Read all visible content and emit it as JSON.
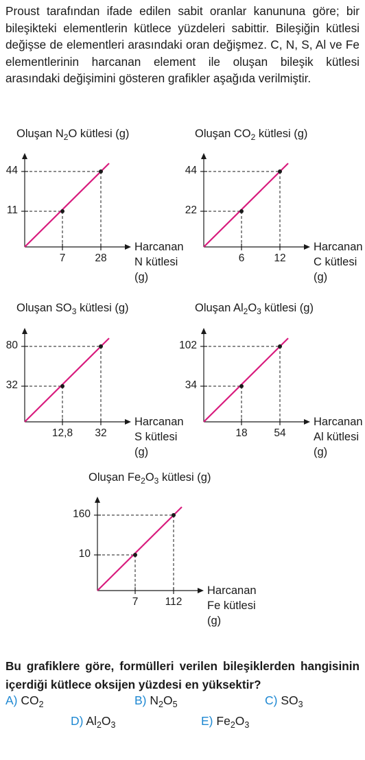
{
  "intro_text": "Proust tarafından ifade edilen sabit oranlar kanununa göre; bir bileşikteki elementlerin kütlece yüzdeleri sabittir. Bileşiğin kütlesi değişse de elementleri arasındaki oran değişmez. C, N, S, Al ve Fe elementlerinin harcanan element ile oluşan bileşik kütlesi arasındaki değişimini gösteren grafikler aşağıda verilmiştir.",
  "colors": {
    "line": "#d81b7d",
    "axis": "#1a1a1a",
    "option_letter": "#1e88d2"
  },
  "chart_data": [
    {
      "type": "line",
      "title_prefix": "Oluşan ",
      "formula": [
        [
          "N",
          "2"
        ],
        [
          "O",
          ""
        ]
      ],
      "title_suffix": " kütlesi (g)",
      "xlabel": [
        "Harcanan",
        "N kütlesi",
        "(g)"
      ],
      "x_ticks": [
        "7",
        "28"
      ],
      "y_ticks": [
        "11",
        "44"
      ],
      "points": [
        {
          "x": 7,
          "y": 11
        },
        {
          "x": 28,
          "y": 44
        }
      ]
    },
    {
      "type": "line",
      "title_prefix": "Oluşan ",
      "formula": [
        [
          "CO",
          "2"
        ]
      ],
      "title_suffix": " kütlesi (g)",
      "xlabel": [
        "Harcanan",
        "C kütlesi",
        "(g)"
      ],
      "x_ticks": [
        "6",
        "12"
      ],
      "y_ticks": [
        "22",
        "44"
      ],
      "points": [
        {
          "x": 6,
          "y": 22
        },
        {
          "x": 12,
          "y": 44
        }
      ]
    },
    {
      "type": "line",
      "title_prefix": "Oluşan ",
      "formula": [
        [
          "SO",
          "3"
        ]
      ],
      "title_suffix": " kütlesi (g)",
      "xlabel": [
        "Harcanan",
        "S kütlesi",
        "(g)"
      ],
      "x_ticks": [
        "12,8",
        "32"
      ],
      "y_ticks": [
        "32",
        "80"
      ],
      "points": [
        {
          "x": 12.8,
          "y": 32
        },
        {
          "x": 32,
          "y": 80
        }
      ]
    },
    {
      "type": "line",
      "title_prefix": "Oluşan ",
      "formula": [
        [
          "Al",
          "2"
        ],
        [
          "O",
          "3"
        ]
      ],
      "title_suffix": " kütlesi (g)",
      "xlabel": [
        "Harcanan",
        "Al kütlesi",
        "(g)"
      ],
      "x_ticks": [
        "18",
        "54"
      ],
      "y_ticks": [
        "34",
        "102"
      ],
      "points": [
        {
          "x": 18,
          "y": 34
        },
        {
          "x": 54,
          "y": 102
        }
      ]
    },
    {
      "type": "line",
      "title_prefix": "Oluşan ",
      "formula": [
        [
          "Fe",
          "2"
        ],
        [
          "O",
          "3"
        ]
      ],
      "title_suffix": " kütlesi (g)",
      "xlabel": [
        "Harcanan",
        "Fe kütlesi",
        "(g)"
      ],
      "x_ticks": [
        "7",
        "112"
      ],
      "y_ticks": [
        "10",
        "160"
      ],
      "points": [
        {
          "x": 7,
          "y": 10
        },
        {
          "x": 112,
          "y": 160
        }
      ]
    }
  ],
  "question": "Bu grafiklere göre, formülleri verilen bileşiklerden hangisinin içerdiği kütlece oksijen yüzdesi en yüksektir?",
  "options": [
    {
      "letter": "A)",
      "formula": [
        [
          "CO",
          "2"
        ]
      ]
    },
    {
      "letter": "B)",
      "formula": [
        [
          "N",
          "2"
        ],
        [
          "O",
          "5"
        ]
      ]
    },
    {
      "letter": "C)",
      "formula": [
        [
          "SO",
          "3"
        ]
      ]
    },
    {
      "letter": "D)",
      "formula": [
        [
          "Al",
          "2"
        ],
        [
          "O",
          "3"
        ]
      ]
    },
    {
      "letter": "E)",
      "formula": [
        [
          "Fe",
          "2"
        ],
        [
          "O",
          "3"
        ]
      ]
    }
  ]
}
